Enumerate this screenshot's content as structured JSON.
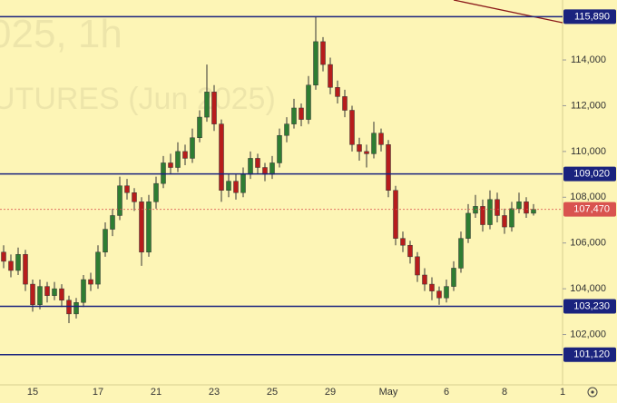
{
  "chart_data": {
    "type": "candlestick",
    "watermark": [
      "025, 1h",
      "UTURES (Jun 2025)"
    ],
    "categories": [
      null,
      null,
      null,
      null,
      "15",
      null,
      null,
      null,
      null,
      null,
      null,
      null,
      null,
      "17",
      null,
      null,
      null,
      null,
      null,
      null,
      null,
      "21",
      null,
      null,
      null,
      null,
      null,
      null,
      null,
      "23",
      null,
      null,
      null,
      null,
      null,
      null,
      null,
      "25",
      null,
      null,
      null,
      null,
      null,
      null,
      null,
      "29",
      null,
      null,
      null,
      null,
      null,
      null,
      null,
      "May",
      null,
      null,
      null,
      null,
      null,
      null,
      null,
      "6",
      null,
      null,
      null,
      null,
      null,
      null,
      null,
      "8",
      null,
      null,
      null,
      null,
      null,
      null,
      null,
      "1"
    ],
    "open": [
      105600,
      105200,
      104800,
      105500,
      104200,
      103300,
      104100,
      103700,
      104000,
      103500,
      102900,
      103400,
      104400,
      104200,
      105600,
      106600,
      107200,
      108500,
      108200,
      107800,
      105600,
      107800,
      108600,
      109500,
      109300,
      110000,
      109700,
      110600,
      111500,
      112600,
      111200,
      108300,
      108700,
      108200,
      109000,
      109700,
      109300,
      109000,
      109500,
      110700,
      111200,
      111900,
      111400,
      112900,
      114800,
      113800,
      112800,
      112400,
      111800,
      110300,
      110000,
      109900,
      110800,
      110300,
      108300,
      106200,
      105900,
      105400,
      104600,
      104200,
      103900,
      103600,
      104100,
      104900,
      106200,
      107300,
      107600,
      106800,
      107900,
      107200,
      106700,
      107500,
      107800,
      107300,
      null,
      null,
      null,
      null
    ],
    "high": [
      105900,
      105500,
      105800,
      105700,
      104400,
      104400,
      104300,
      104300,
      104200,
      103700,
      103600,
      104600,
      104700,
      105900,
      106900,
      107500,
      108900,
      108800,
      108400,
      108000,
      108100,
      108900,
      109800,
      109900,
      110400,
      110300,
      111000,
      111800,
      113800,
      112900,
      111400,
      109000,
      109000,
      109300,
      110000,
      109900,
      109500,
      109800,
      111000,
      111500,
      112300,
      112100,
      113300,
      115890,
      115000,
      114100,
      113100,
      112700,
      112000,
      110600,
      110300,
      111300,
      111000,
      110500,
      108500,
      106500,
      106100,
      105600,
      104900,
      104500,
      104100,
      104400,
      105200,
      106500,
      107700,
      108100,
      107900,
      108300,
      108200,
      107500,
      107800,
      108200,
      108000,
      107700,
      null,
      null,
      null,
      null
    ],
    "low": [
      104900,
      104500,
      104600,
      103900,
      103000,
      103100,
      103400,
      103500,
      103200,
      102500,
      102700,
      103200,
      103900,
      104000,
      105400,
      106300,
      107000,
      107900,
      107400,
      105000,
      105400,
      107500,
      108400,
      109000,
      109100,
      109400,
      109500,
      110400,
      111300,
      110900,
      107800,
      108000,
      107900,
      108000,
      108800,
      109000,
      108700,
      108800,
      109300,
      110400,
      111000,
      111100,
      111200,
      112700,
      113500,
      112500,
      112100,
      111500,
      110000,
      109600,
      109300,
      109700,
      110000,
      108000,
      105900,
      105600,
      105100,
      104300,
      103900,
      103500,
      103300,
      103400,
      103900,
      104700,
      106000,
      107100,
      106500,
      106600,
      106900,
      106400,
      106500,
      107300,
      107100,
      107200,
      null,
      null,
      null,
      null
    ],
    "close": [
      105200,
      104800,
      105500,
      104200,
      103300,
      104100,
      103700,
      104000,
      103500,
      102900,
      103400,
      104400,
      104200,
      105600,
      106600,
      107200,
      108500,
      108200,
      107800,
      105600,
      107800,
      108600,
      109500,
      109300,
      110000,
      109700,
      110600,
      111500,
      112600,
      111200,
      108300,
      108700,
      108200,
      109000,
      109700,
      109300,
      109000,
      109500,
      110700,
      111200,
      111900,
      111400,
      112900,
      114800,
      113800,
      112800,
      112400,
      111800,
      110300,
      110000,
      109900,
      110800,
      110300,
      108300,
      106200,
      105900,
      105400,
      104600,
      104200,
      103900,
      103600,
      104100,
      104900,
      106200,
      107300,
      107600,
      106800,
      107900,
      107200,
      106700,
      107500,
      107800,
      107300,
      107470,
      null,
      null,
      null,
      null
    ],
    "up_color": "#2e7d32",
    "down_color": "#b71c1c",
    "ylim": [
      99800,
      116620
    ],
    "yticks": [
      {
        "value": 102000,
        "label": "102,000"
      },
      {
        "value": 104000,
        "label": "104,000"
      },
      {
        "value": 106000,
        "label": "106,000"
      },
      {
        "value": 108000,
        "label": "108,000"
      },
      {
        "value": 110000,
        "label": "110,000"
      },
      {
        "value": 112000,
        "label": "112,000"
      },
      {
        "value": 114000,
        "label": "114,000"
      }
    ],
    "levels": [
      {
        "value": 115890,
        "label": "115,890"
      },
      {
        "value": 109020,
        "label": "109,020"
      },
      {
        "value": 103230,
        "label": "103,230"
      },
      {
        "value": 101120,
        "label": "101,120"
      }
    ],
    "level_color": "#1a237e",
    "last_price": {
      "value": 107470,
      "label": "107,470"
    },
    "last_price_color": "#d9534f"
  }
}
